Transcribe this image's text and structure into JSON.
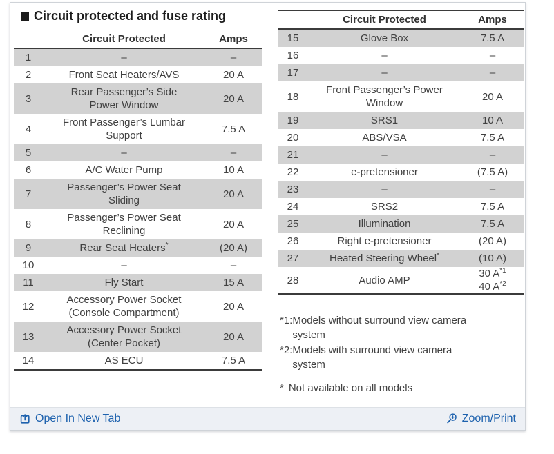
{
  "page": {
    "title": "Circuit protected and fuse rating"
  },
  "columns": {
    "circuit": "Circuit Protected",
    "amps": "Amps"
  },
  "tables": {
    "left": [
      {
        "no": "1",
        "circuit": "–",
        "amps": "–",
        "shaded": true
      },
      {
        "no": "2",
        "circuit": "Front Seat Heaters/AVS",
        "amps": "20 A",
        "shaded": false
      },
      {
        "no": "3",
        "circuit": "Rear Passenger’s Side\nPower Window",
        "amps": "20 A",
        "shaded": true
      },
      {
        "no": "4",
        "circuit": "Front Passenger’s Lumbar\nSupport",
        "amps": "7.5 A",
        "shaded": false
      },
      {
        "no": "5",
        "circuit": "–",
        "amps": "–",
        "shaded": true
      },
      {
        "no": "6",
        "circuit": "A/C Water Pump",
        "amps": "10 A",
        "shaded": false
      },
      {
        "no": "7",
        "circuit": "Passenger’s Power Seat\nSliding",
        "amps": "20 A",
        "shaded": true
      },
      {
        "no": "8",
        "circuit": "Passenger’s Power Seat\nReclining",
        "amps": "20 A",
        "shaded": false
      },
      {
        "no": "9",
        "circuit": "Rear Seat Heaters*",
        "amps": "(20 A)",
        "shaded": true
      },
      {
        "no": "10",
        "circuit": "–",
        "amps": "–",
        "shaded": false
      },
      {
        "no": "11",
        "circuit": "Fly Start",
        "amps": "15 A",
        "shaded": true
      },
      {
        "no": "12",
        "circuit": "Accessory Power Socket\n(Console Compartment)",
        "amps": "20 A",
        "shaded": false
      },
      {
        "no": "13",
        "circuit": "Accessory Power Socket\n(Center Pocket)",
        "amps": "20 A",
        "shaded": true
      },
      {
        "no": "14",
        "circuit": "AS ECU",
        "amps": "7.5 A",
        "shaded": false
      }
    ],
    "right": [
      {
        "no": "15",
        "circuit": "Glove Box",
        "amps": "7.5 A",
        "shaded": true
      },
      {
        "no": "16",
        "circuit": "–",
        "amps": "–",
        "shaded": false
      },
      {
        "no": "17",
        "circuit": "–",
        "amps": "–",
        "shaded": true
      },
      {
        "no": "18",
        "circuit": "Front Passenger’s Power\nWindow",
        "amps": "20 A",
        "shaded": false
      },
      {
        "no": "19",
        "circuit": "SRS1",
        "amps": "10 A",
        "shaded": true
      },
      {
        "no": "20",
        "circuit": "ABS/VSA",
        "amps": "7.5 A",
        "shaded": false
      },
      {
        "no": "21",
        "circuit": "–",
        "amps": "–",
        "shaded": true
      },
      {
        "no": "22",
        "circuit": "e-pretensioner",
        "amps": "(7.5 A)",
        "shaded": false
      },
      {
        "no": "23",
        "circuit": "–",
        "amps": "–",
        "shaded": true
      },
      {
        "no": "24",
        "circuit": "SRS2",
        "amps": "7.5 A",
        "shaded": false
      },
      {
        "no": "25",
        "circuit": "Illumination",
        "amps": "7.5 A",
        "shaded": true
      },
      {
        "no": "26",
        "circuit": "Right e-pretensioner",
        "amps": "(20 A)",
        "shaded": false
      },
      {
        "no": "27",
        "circuit": "Heated Steering Wheel*",
        "amps": "(10 A)",
        "shaded": true
      },
      {
        "no": "28",
        "circuit": "Audio AMP",
        "amps": [
          "30 A*1",
          "40 A*2"
        ],
        "shaded": false
      }
    ]
  },
  "footnotes": [
    {
      "marker": "*1:",
      "text": "Models without surround view camera\nsystem"
    },
    {
      "marker": "*2:",
      "text": "Models with surround view camera\nsystem"
    },
    {
      "marker": "*",
      "text": "Not available on all models"
    }
  ],
  "footer": {
    "open_in_new_tab": "Open In New Tab",
    "zoom_print": "Zoom/Print"
  },
  "colors": {
    "link_blue": "#1e62ae",
    "row_shade": "#d2d2d2",
    "rule_dark": "#3b3b3b",
    "footer_bg": "#edf0f5"
  }
}
